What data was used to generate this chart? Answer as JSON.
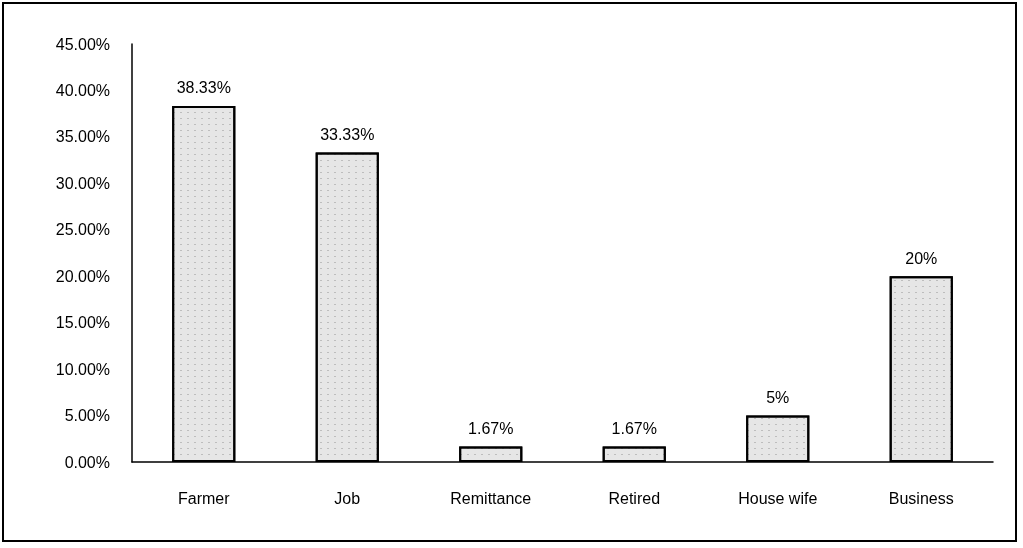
{
  "chart_data": {
    "type": "bar",
    "categories": [
      "Farmer",
      "Job",
      "Remittance",
      "Retired",
      "House wife",
      "Business"
    ],
    "values": [
      38.33,
      33.33,
      1.67,
      1.67,
      5,
      20
    ],
    "value_labels": [
      "38.33%",
      "33.33%",
      "1.67%",
      "1.67%",
      "5%",
      "20%"
    ],
    "color": "#e6e6e6",
    "ylim": [
      0,
      45
    ],
    "yticks": [
      {
        "value": 0,
        "label": "0.00%"
      },
      {
        "value": 5,
        "label": "5.00%"
      },
      {
        "value": 10,
        "label": "10.00%"
      },
      {
        "value": 15,
        "label": "15.00%"
      },
      {
        "value": 20,
        "label": "20.00%"
      },
      {
        "value": 25,
        "label": "25.00%"
      },
      {
        "value": 30,
        "label": "30.00%"
      },
      {
        "value": 35,
        "label": "35.00%"
      },
      {
        "value": 40,
        "label": "40.00%"
      },
      {
        "value": 45,
        "label": "45.00%"
      }
    ]
  }
}
